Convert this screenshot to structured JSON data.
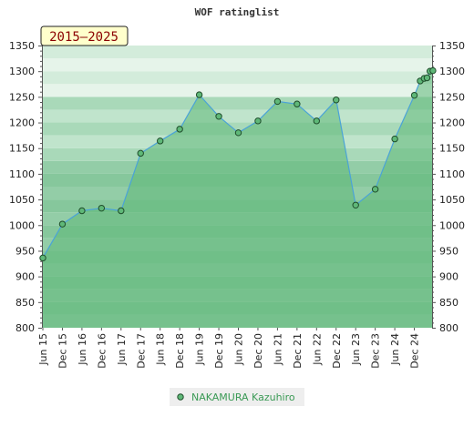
{
  "chart_data": {
    "type": "area",
    "title": "WOF ratinglist",
    "period_label": "2015–2025",
    "ylim": [
      800,
      1350
    ],
    "y_ticks": [
      800,
      850,
      900,
      950,
      1000,
      1050,
      1100,
      1150,
      1200,
      1250,
      1300,
      1350
    ],
    "x_tick_labels": [
      "Jun 15",
      "Dec 15",
      "Jun 16",
      "Dec 16",
      "Jun 17",
      "Dec 17",
      "Jun 18",
      "Dec 18",
      "Jun 19",
      "Dec 19",
      "Jun 20",
      "Dec 20",
      "Jun 21",
      "Dec 21",
      "Jun 22",
      "Dec 22",
      "Jun 23",
      "Dec 23",
      "Jun 24",
      "Dec 24"
    ],
    "series": [
      {
        "name": "NAKAMURA Kazuhiro",
        "x": [
          0,
          1,
          2,
          3,
          4,
          5,
          6,
          7,
          8,
          9,
          10,
          11,
          12,
          13,
          14,
          15,
          16,
          17,
          18,
          19,
          19.3,
          19.5,
          19.65,
          19.8,
          19.95
        ],
        "values": [
          936,
          1002,
          1028,
          1033,
          1028,
          1140,
          1164,
          1187,
          1254,
          1212,
          1180,
          1203,
          1241,
          1236,
          1203,
          1244,
          1039,
          1070,
          1168,
          1253,
          1281,
          1286,
          1287,
          1300,
          1301
        ]
      }
    ],
    "legend_position": "bottom-center",
    "grid": true
  }
}
